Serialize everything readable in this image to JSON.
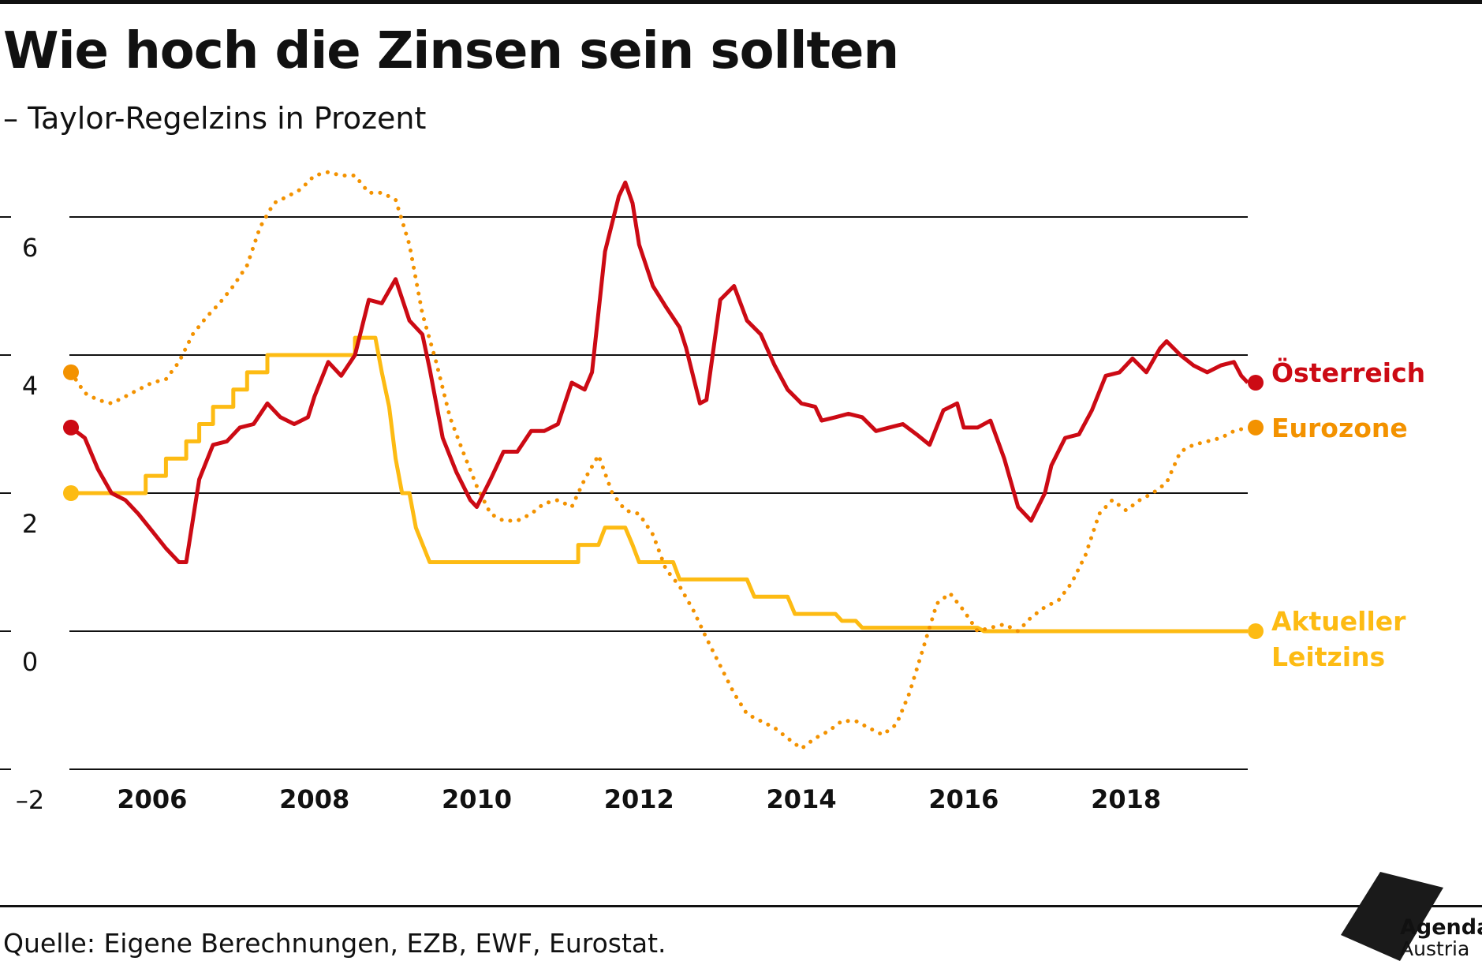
{
  "header": {
    "title": "Wie hoch die Zinsen sein sollten",
    "subtitle": "– Taylor-Regelzins in Prozent"
  },
  "footer": {
    "source": "Quelle: Eigene Berechnungen, EZB, EWF, Eurostat.",
    "logo_line1": "Agenda",
    "logo_line2": "Austria"
  },
  "colors": {
    "oesterreich": "#cc0a14",
    "eurozone": "#f39200",
    "leitzins": "#fdbb13",
    "grid": "#111111"
  },
  "chart_data": {
    "type": "line",
    "title": "Wie hoch die Zinsen sein sollten",
    "subtitle": "– Taylor-Regelzins in Prozent",
    "ylim": [
      -2,
      6.2
    ],
    "yticks": [
      -2,
      0,
      2,
      4,
      6
    ],
    "ytick_labels": [
      "–2",
      "0",
      "2",
      "4",
      "6"
    ],
    "xlim": [
      2005.0,
      2019.5
    ],
    "xticks": [
      2006,
      2008,
      2010,
      2012,
      2014,
      2016,
      2018
    ],
    "xtick_labels": [
      "2006",
      "2008",
      "2010",
      "2012",
      "2014",
      "2016",
      "2018"
    ],
    "grid": true,
    "legend_placement": "right end labels",
    "series": [
      {
        "name": "Österreich",
        "style": "solid",
        "points": [
          [
            2005.0,
            2.95
          ],
          [
            2005.17,
            2.8
          ],
          [
            2005.33,
            2.35
          ],
          [
            2005.5,
            2.0
          ],
          [
            2005.67,
            1.9
          ],
          [
            2005.83,
            1.7
          ],
          [
            2006.0,
            1.45
          ],
          [
            2006.17,
            1.2
          ],
          [
            2006.33,
            1.0
          ],
          [
            2006.42,
            1.0
          ],
          [
            2006.58,
            2.2
          ],
          [
            2006.75,
            2.7
          ],
          [
            2006.92,
            2.75
          ],
          [
            2007.08,
            2.95
          ],
          [
            2007.25,
            3.0
          ],
          [
            2007.42,
            3.3
          ],
          [
            2007.58,
            3.1
          ],
          [
            2007.75,
            3.0
          ],
          [
            2007.92,
            3.1
          ],
          [
            2008.0,
            3.4
          ],
          [
            2008.17,
            3.9
          ],
          [
            2008.33,
            3.7
          ],
          [
            2008.5,
            4.0
          ],
          [
            2008.67,
            4.8
          ],
          [
            2008.83,
            4.75
          ],
          [
            2009.0,
            5.1
          ],
          [
            2009.17,
            4.5
          ],
          [
            2009.33,
            4.3
          ],
          [
            2009.42,
            3.8
          ],
          [
            2009.58,
            2.8
          ],
          [
            2009.75,
            2.3
          ],
          [
            2009.92,
            1.9
          ],
          [
            2010.0,
            1.8
          ],
          [
            2010.17,
            2.2
          ],
          [
            2010.33,
            2.6
          ],
          [
            2010.5,
            2.6
          ],
          [
            2010.67,
            2.9
          ],
          [
            2010.83,
            2.9
          ],
          [
            2011.0,
            3.0
          ],
          [
            2011.17,
            3.6
          ],
          [
            2011.33,
            3.5
          ],
          [
            2011.42,
            3.75
          ],
          [
            2011.58,
            5.5
          ],
          [
            2011.75,
            6.3
          ],
          [
            2011.83,
            6.5
          ],
          [
            2011.92,
            6.2
          ],
          [
            2012.0,
            5.6
          ],
          [
            2012.17,
            5.0
          ],
          [
            2012.33,
            4.7
          ],
          [
            2012.5,
            4.4
          ],
          [
            2012.58,
            4.1
          ],
          [
            2012.75,
            3.3
          ],
          [
            2012.83,
            3.35
          ],
          [
            2013.0,
            4.8
          ],
          [
            2013.17,
            5.0
          ],
          [
            2013.33,
            4.5
          ],
          [
            2013.5,
            4.3
          ],
          [
            2013.67,
            3.85
          ],
          [
            2013.83,
            3.5
          ],
          [
            2014.0,
            3.3
          ],
          [
            2014.17,
            3.25
          ],
          [
            2014.25,
            3.05
          ],
          [
            2014.42,
            3.1
          ],
          [
            2014.58,
            3.15
          ],
          [
            2014.75,
            3.1
          ],
          [
            2014.92,
            2.9
          ],
          [
            2015.08,
            2.95
          ],
          [
            2015.25,
            3.0
          ],
          [
            2015.42,
            2.85
          ],
          [
            2015.58,
            2.7
          ],
          [
            2015.75,
            3.2
          ],
          [
            2015.92,
            3.3
          ],
          [
            2016.0,
            2.95
          ],
          [
            2016.17,
            2.95
          ],
          [
            2016.33,
            3.05
          ],
          [
            2016.5,
            2.5
          ],
          [
            2016.67,
            1.8
          ],
          [
            2016.83,
            1.6
          ],
          [
            2017.0,
            2.0
          ],
          [
            2017.08,
            2.4
          ],
          [
            2017.25,
            2.8
          ],
          [
            2017.42,
            2.85
          ],
          [
            2017.58,
            3.2
          ],
          [
            2017.75,
            3.7
          ],
          [
            2017.92,
            3.75
          ],
          [
            2018.08,
            3.95
          ],
          [
            2018.25,
            3.75
          ],
          [
            2018.42,
            4.1
          ],
          [
            2018.5,
            4.2
          ],
          [
            2018.67,
            4.0
          ],
          [
            2018.83,
            3.85
          ],
          [
            2019.0,
            3.75
          ],
          [
            2019.17,
            3.85
          ],
          [
            2019.33,
            3.9
          ],
          [
            2019.42,
            3.7
          ],
          [
            2019.5,
            3.6
          ],
          [
            2019.5,
            3.6
          ]
        ]
      },
      {
        "name": "Eurozone",
        "style": "dotted",
        "points": [
          [
            2005.0,
            3.75
          ],
          [
            2005.17,
            3.45
          ],
          [
            2005.33,
            3.35
          ],
          [
            2005.5,
            3.3
          ],
          [
            2005.67,
            3.4
          ],
          [
            2005.83,
            3.5
          ],
          [
            2006.0,
            3.6
          ],
          [
            2006.17,
            3.65
          ],
          [
            2006.33,
            3.9
          ],
          [
            2006.5,
            4.3
          ],
          [
            2006.67,
            4.55
          ],
          [
            2006.83,
            4.75
          ],
          [
            2007.0,
            5.0
          ],
          [
            2007.17,
            5.3
          ],
          [
            2007.33,
            5.85
          ],
          [
            2007.5,
            6.2
          ],
          [
            2007.67,
            6.3
          ],
          [
            2007.83,
            6.4
          ],
          [
            2008.0,
            6.6
          ],
          [
            2008.17,
            6.65
          ],
          [
            2008.33,
            6.6
          ],
          [
            2008.5,
            6.6
          ],
          [
            2008.67,
            6.35
          ],
          [
            2008.83,
            6.35
          ],
          [
            2009.0,
            6.25
          ],
          [
            2009.17,
            5.6
          ],
          [
            2009.33,
            4.6
          ],
          [
            2009.5,
            3.9
          ],
          [
            2009.67,
            3.1
          ],
          [
            2009.83,
            2.6
          ],
          [
            2010.0,
            2.1
          ],
          [
            2010.17,
            1.7
          ],
          [
            2010.33,
            1.6
          ],
          [
            2010.5,
            1.6
          ],
          [
            2010.67,
            1.7
          ],
          [
            2010.83,
            1.85
          ],
          [
            2011.0,
            1.9
          ],
          [
            2011.17,
            1.8
          ],
          [
            2011.33,
            2.2
          ],
          [
            2011.5,
            2.55
          ],
          [
            2011.67,
            2.0
          ],
          [
            2011.83,
            1.75
          ],
          [
            2012.0,
            1.7
          ],
          [
            2012.17,
            1.4
          ],
          [
            2012.33,
            0.9
          ],
          [
            2012.5,
            0.65
          ],
          [
            2012.67,
            0.3
          ],
          [
            2012.83,
            -0.1
          ],
          [
            2013.0,
            -0.5
          ],
          [
            2013.17,
            -0.9
          ],
          [
            2013.33,
            -1.2
          ],
          [
            2013.5,
            -1.3
          ],
          [
            2013.67,
            -1.4
          ],
          [
            2013.83,
            -1.55
          ],
          [
            2014.0,
            -1.7
          ],
          [
            2014.17,
            -1.55
          ],
          [
            2014.33,
            -1.45
          ],
          [
            2014.5,
            -1.3
          ],
          [
            2014.67,
            -1.3
          ],
          [
            2014.83,
            -1.4
          ],
          [
            2015.0,
            -1.5
          ],
          [
            2015.17,
            -1.35
          ],
          [
            2015.33,
            -0.9
          ],
          [
            2015.5,
            -0.25
          ],
          [
            2015.67,
            0.4
          ],
          [
            2015.83,
            0.55
          ],
          [
            2016.0,
            0.3
          ],
          [
            2016.17,
            0.0
          ],
          [
            2016.33,
            0.05
          ],
          [
            2016.5,
            0.1
          ],
          [
            2016.67,
            0.0
          ],
          [
            2016.83,
            0.2
          ],
          [
            2017.0,
            0.35
          ],
          [
            2017.17,
            0.45
          ],
          [
            2017.33,
            0.7
          ],
          [
            2017.5,
            1.1
          ],
          [
            2017.67,
            1.7
          ],
          [
            2017.83,
            1.9
          ],
          [
            2018.0,
            1.75
          ],
          [
            2018.17,
            1.9
          ],
          [
            2018.33,
            2.0
          ],
          [
            2018.5,
            2.15
          ],
          [
            2018.67,
            2.6
          ],
          [
            2018.83,
            2.7
          ],
          [
            2019.0,
            2.75
          ],
          [
            2019.17,
            2.8
          ],
          [
            2019.33,
            2.9
          ],
          [
            2019.5,
            2.95
          ]
        ]
      },
      {
        "name": "Aktueller Leitzins",
        "style": "solid",
        "points": [
          [
            2005.0,
            2.0
          ],
          [
            2005.92,
            2.0
          ],
          [
            2005.92,
            2.25
          ],
          [
            2006.17,
            2.25
          ],
          [
            2006.17,
            2.5
          ],
          [
            2006.42,
            2.5
          ],
          [
            2006.42,
            2.75
          ],
          [
            2006.58,
            2.75
          ],
          [
            2006.58,
            3.0
          ],
          [
            2006.75,
            3.0
          ],
          [
            2006.75,
            3.25
          ],
          [
            2007.0,
            3.25
          ],
          [
            2007.0,
            3.5
          ],
          [
            2007.17,
            3.5
          ],
          [
            2007.17,
            3.75
          ],
          [
            2007.42,
            3.75
          ],
          [
            2007.42,
            4.0
          ],
          [
            2008.5,
            4.0
          ],
          [
            2008.5,
            4.25
          ],
          [
            2008.75,
            4.25
          ],
          [
            2008.83,
            3.75
          ],
          [
            2008.92,
            3.25
          ],
          [
            2009.0,
            2.5
          ],
          [
            2009.08,
            2.0
          ],
          [
            2009.17,
            2.0
          ],
          [
            2009.25,
            1.5
          ],
          [
            2009.42,
            1.0
          ],
          [
            2011.25,
            1.0
          ],
          [
            2011.25,
            1.25
          ],
          [
            2011.5,
            1.25
          ],
          [
            2011.58,
            1.5
          ],
          [
            2011.83,
            1.5
          ],
          [
            2011.92,
            1.25
          ],
          [
            2012.0,
            1.0
          ],
          [
            2012.42,
            1.0
          ],
          [
            2012.5,
            0.75
          ],
          [
            2013.33,
            0.75
          ],
          [
            2013.42,
            0.5
          ],
          [
            2013.83,
            0.5
          ],
          [
            2013.92,
            0.25
          ],
          [
            2014.42,
            0.25
          ],
          [
            2014.5,
            0.15
          ],
          [
            2014.67,
            0.15
          ],
          [
            2014.75,
            0.05
          ],
          [
            2016.17,
            0.05
          ],
          [
            2016.25,
            0.0
          ],
          [
            2019.5,
            0.0
          ]
        ]
      }
    ],
    "end_labels": [
      {
        "text": "Österreich",
        "value": 3.75
      },
      {
        "text": "Eurozone",
        "value": 2.95
      },
      {
        "text": "Aktueller",
        "value": 0.0
      },
      {
        "text": "Leitzins",
        "value": 0.0
      }
    ]
  }
}
